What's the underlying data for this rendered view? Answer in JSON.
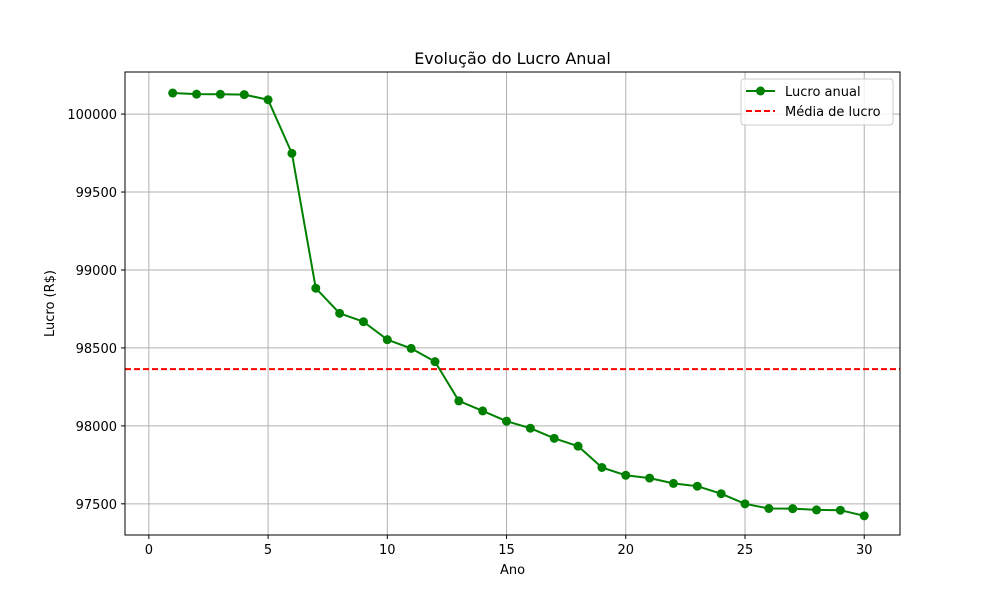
{
  "chart_data": {
    "type": "line",
    "title": "Evolução do Lucro Anual",
    "xlabel": "Ano",
    "ylabel": "Lucro (R$)",
    "xlim": [
      -1.0,
      31.5
    ],
    "ylim": [
      97300,
      100270
    ],
    "xticks": [
      0,
      5,
      10,
      15,
      20,
      25,
      30
    ],
    "yticks": [
      97500,
      98000,
      98500,
      99000,
      99500,
      100000
    ],
    "grid": true,
    "legend_position": "top-right",
    "x": [
      1,
      2,
      3,
      4,
      5,
      6,
      7,
      8,
      9,
      10,
      11,
      12,
      13,
      14,
      15,
      16,
      17,
      18,
      19,
      20,
      21,
      22,
      23,
      24,
      25,
      26,
      27,
      28,
      29,
      30
    ],
    "series": [
      {
        "name": "Lucro anual",
        "color": "#008000",
        "style": "line-marker",
        "values": [
          100135,
          100128,
          100127,
          100125,
          100092,
          99748,
          98883,
          98722,
          98668,
          98553,
          98497,
          98412,
          98160,
          98096,
          98030,
          97985,
          97920,
          97870,
          97733,
          97683,
          97665,
          97631,
          97613,
          97565,
          97500,
          97470,
          97469,
          97461,
          97459,
          97423
        ]
      }
    ],
    "reference_lines": [
      {
        "name": "Média de lucro",
        "color": "#ff0000",
        "style": "dashed",
        "y": 98364
      }
    ]
  }
}
